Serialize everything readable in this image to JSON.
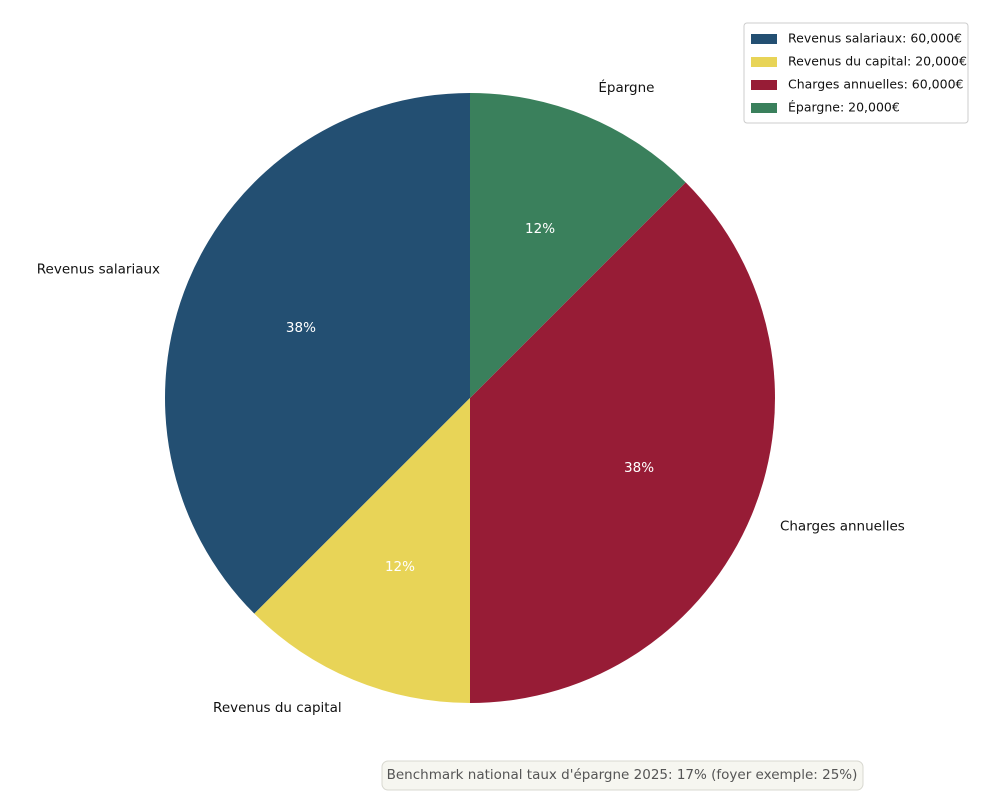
{
  "chart_data": {
    "type": "pie",
    "categories": [
      "Revenus salariaux",
      "Revenus du capital",
      "Charges annuelles",
      "Épargne"
    ],
    "values": [
      60000,
      20000,
      60000,
      20000
    ],
    "value_labels": [
      "38%",
      "12%",
      "38%",
      "12%"
    ],
    "colors": [
      "#234f72",
      "#e8d457",
      "#971c36",
      "#3a805c"
    ],
    "legend_labels": [
      "Revenus salariaux: 60,000€",
      "Revenus du capital: 20,000€",
      "Charges annuelles: 60,000€",
      "Épargne: 20,000€"
    ],
    "legend": "upper right",
    "start_angle": 90,
    "annotation": "Benchmark national taux d'épargne 2025: 17% (foyer exemple: 25%)"
  }
}
